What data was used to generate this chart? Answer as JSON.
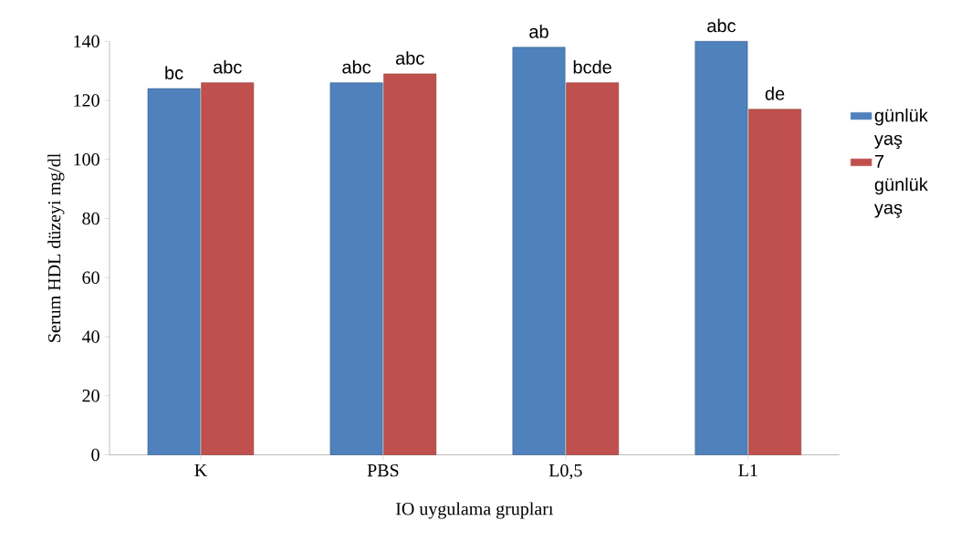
{
  "chart_data": {
    "type": "bar",
    "xlabel": "IO uygulama grupları",
    "ylabel": "Serum HDL düzeyi mg/dl",
    "categories": [
      "K",
      "PBS",
      "L0,5",
      "L1"
    ],
    "series": [
      {
        "name": "günlük yaş",
        "color": "#4f81bd",
        "values": [
          124,
          126,
          138,
          140
        ]
      },
      {
        "name": "7 günlük yaş",
        "color": "#c0504d",
        "values": [
          126,
          129,
          126,
          117
        ]
      }
    ],
    "ylim": [
      0,
      140
    ],
    "yticks": [
      0,
      20,
      40,
      60,
      80,
      100,
      120,
      140
    ],
    "grid": false,
    "legend": "right",
    "annotations": [
      {
        "text": "bc",
        "x": "K",
        "y": 124
      },
      {
        "text": "abc",
        "x": "K",
        "y": 126
      },
      {
        "text": "abc",
        "x": "PBS",
        "y": 126
      },
      {
        "text": "abc",
        "x": "PBS",
        "y": 129
      },
      {
        "text": "ab",
        "x": "L0,5",
        "y": 138
      },
      {
        "text": "bcde",
        "x": "L0,5",
        "y": 126
      },
      {
        "text": "abc",
        "x": "L1",
        "y": 140
      },
      {
        "text": "de",
        "x": "L1",
        "y": 117
      }
    ]
  }
}
